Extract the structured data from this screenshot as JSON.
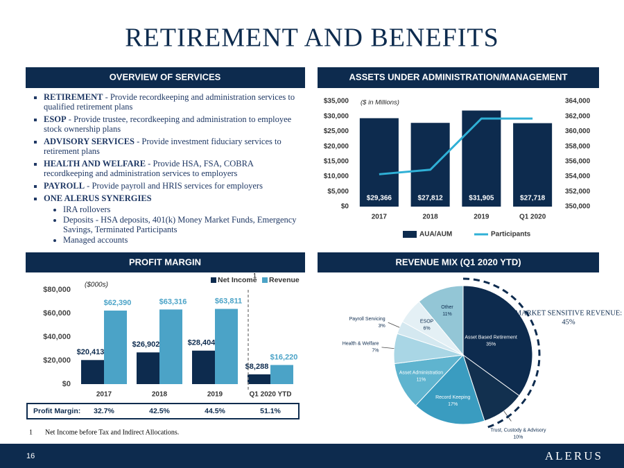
{
  "title": "RETIREMENT AND BENEFITS",
  "overview": {
    "header": "OVERVIEW OF SERVICES",
    "items": [
      {
        "label": "RETIREMENT",
        "text": " - Provide recordkeeping and administration services to qualified retirement plans"
      },
      {
        "label": "ESOP",
        "text": " - Provide trustee, recordkeeping and administration to employee stock ownership plans"
      },
      {
        "label": "ADVISORY SERVICES",
        "text": " - Provide investment fiduciary services to retirement plans"
      },
      {
        "label": "HEALTH AND WELFARE",
        "text": " - Provide HSA, FSA, COBRA recordkeeping and administration services to employers"
      },
      {
        "label": "PAYROLL",
        "text": " - Provide payroll and HRIS services for employers"
      },
      {
        "label": "ONE ALERUS SYNERGIES",
        "text": ""
      }
    ],
    "subitems": [
      "IRA rollovers",
      "Deposits - HSA deposits, 401(k) Money Market Funds, Emergency Savings, Terminated Participants",
      "Managed accounts"
    ]
  },
  "chart_data": [
    {
      "type": "combo",
      "title": "ASSETS UNDER ADMINISTRATION/MANAGEMENT",
      "annotation": "($ in Millions)",
      "categories": [
        "2017",
        "2018",
        "2019",
        "Q1 2020"
      ],
      "series": [
        {
          "name": "AUA/AUM",
          "color": "#0d2b4e",
          "values": [
            29366,
            27812,
            31905,
            27718
          ],
          "value_labels": [
            "$29,366",
            "$27,812",
            "$31,905",
            "$27,718"
          ]
        },
        {
          "name": "Participants",
          "color": "#2fb0d6",
          "axis": "y2",
          "values": [
            354300,
            354900,
            361700,
            361700
          ]
        }
      ],
      "ylim": [
        0,
        35000
      ],
      "yticks": [
        {
          "value": 0,
          "label": "$0"
        },
        {
          "value": 5000,
          "label": "$5,000"
        },
        {
          "value": 10000,
          "label": "$10,000"
        },
        {
          "value": 15000,
          "label": "$15,000"
        },
        {
          "value": 20000,
          "label": "$20,000"
        },
        {
          "value": 25000,
          "label": "$25,000"
        },
        {
          "value": 30000,
          "label": "$30,000"
        },
        {
          "value": 35000,
          "label": "$35,000"
        }
      ],
      "y2lim": [
        350000,
        364000
      ],
      "y2ticks": [
        {
          "value": 350000,
          "label": "350,000"
        },
        {
          "value": 352000,
          "label": "352,000"
        },
        {
          "value": 354000,
          "label": "354,000"
        },
        {
          "value": 356000,
          "label": "356,000"
        },
        {
          "value": 358000,
          "label": "358,000"
        },
        {
          "value": 360000,
          "label": "360,000"
        },
        {
          "value": 362000,
          "label": "362,000"
        },
        {
          "value": 364000,
          "label": "364,000"
        }
      ],
      "legend": "bottom"
    },
    {
      "type": "bar",
      "title": "PROFIT MARGIN",
      "annotation": "($000s)",
      "categories": [
        "2017",
        "2018",
        "2019",
        "Q1 2020 YTD"
      ],
      "series": [
        {
          "name": "Net Income",
          "color": "#0d2b4e",
          "values": [
            20413,
            26902,
            28404,
            8288
          ],
          "value_labels": [
            "$20,413",
            "$26,902",
            "$28,404",
            "$8,288"
          ]
        },
        {
          "name": "Revenue",
          "color": "#4ba3c7",
          "values": [
            62390,
            63316,
            63811,
            16220
          ],
          "value_labels": [
            "$62,390",
            "$63,316",
            "$63,811",
            "$16,220"
          ]
        }
      ],
      "ylim": [
        0,
        80000
      ],
      "yticks": [
        {
          "value": 0,
          "label": "$0"
        },
        {
          "value": 20000,
          "label": "$20,000"
        },
        {
          "value": 40000,
          "label": "$40,000"
        },
        {
          "value": 60000,
          "label": "$60,000"
        },
        {
          "value": 80000,
          "label": "$80,000"
        }
      ],
      "legend": "top-right",
      "margin_label": "Profit Margin:",
      "margin": [
        "32.7%",
        "42.5%",
        "44.5%",
        "51.1%"
      ]
    },
    {
      "type": "pie",
      "title": "REVENUE MIX (Q1 2020 YTD)",
      "categories": [
        "Asset Based Retirement",
        "Trust, Custody & Advisory",
        "Record Keeping",
        "Asset Administration",
        "Health & Welfare",
        "Payroll Servicing",
        "ESOP",
        "Other"
      ],
      "values": [
        35,
        10,
        17,
        11,
        7,
        3,
        6,
        11
      ],
      "value_labels": [
        "35%",
        "10%",
        "17%",
        "11%",
        "7%",
        "3%",
        "6%",
        "11%"
      ],
      "colors": [
        "#0d2b4e",
        "#12304f",
        "#3a9cc0",
        "#5fb4cf",
        "#a9d6e5",
        "#d4e8f0",
        "#e4f0f5",
        "#93c6d6"
      ],
      "annotation": "MARKET SENSITIVE REVENUE:",
      "annotation_value": "45%"
    }
  ],
  "footnote": {
    "marker": "1",
    "text": "Net Income before Tax and Indirect Allocations."
  },
  "page_number": "16",
  "logo": "ALERUS"
}
